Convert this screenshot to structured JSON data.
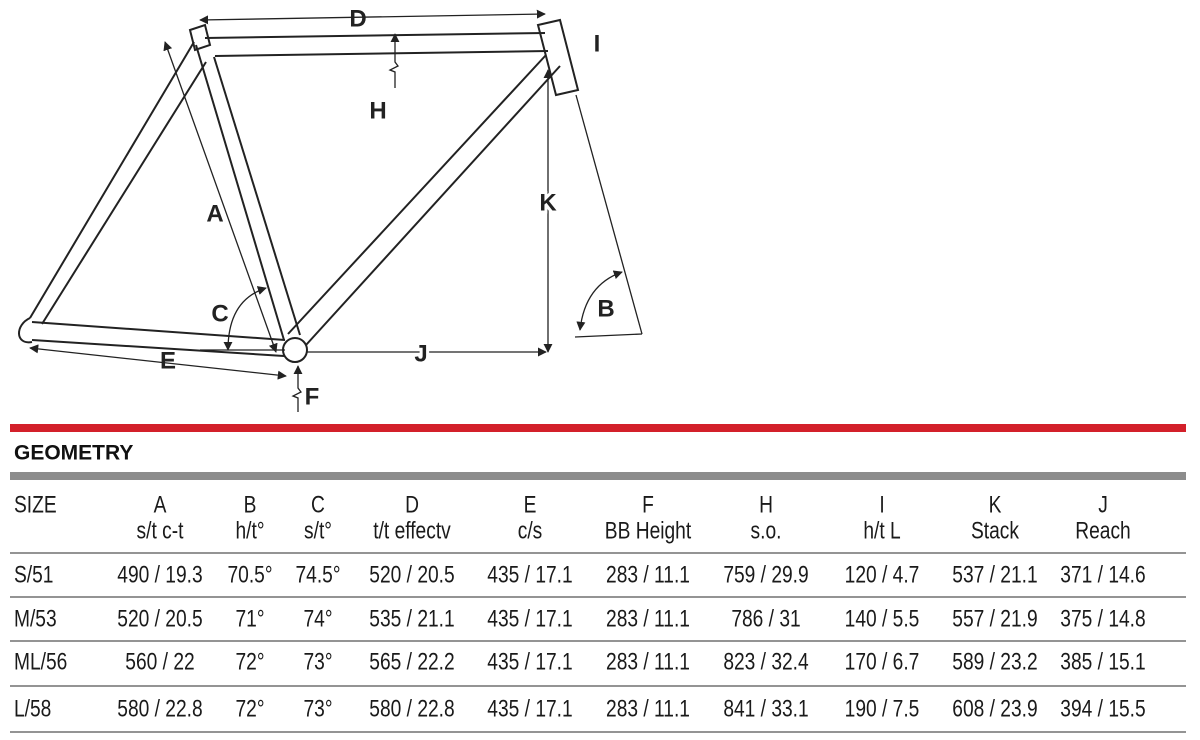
{
  "diagram": {
    "labels": {
      "D": "D",
      "I": "I",
      "H": "H",
      "K": "K",
      "A": "A",
      "C": "C",
      "B": "B",
      "E": "E",
      "J": "J",
      "F": "F"
    }
  },
  "section_title": "GEOMETRY",
  "table": {
    "size_header": "SIZE",
    "header": [
      {
        "letter": "A",
        "name": "s/t c-t"
      },
      {
        "letter": "B",
        "name": "h/t°"
      },
      {
        "letter": "C",
        "name": "s/t°"
      },
      {
        "letter": "D",
        "name": "t/t effectv"
      },
      {
        "letter": "E",
        "name": "c/s"
      },
      {
        "letter": "F",
        "name": "BB Height"
      },
      {
        "letter": "H",
        "name": "s.o."
      },
      {
        "letter": "I",
        "name": "h/t L"
      },
      {
        "letter": "K",
        "name": "Stack"
      },
      {
        "letter": "J",
        "name": "Reach"
      }
    ],
    "rows": [
      [
        "S/51",
        "490 / 19.3",
        "70.5°",
        "74.5°",
        "520 / 20.5",
        "435 / 17.1",
        "283 / 11.1",
        "759 / 29.9",
        "120 / 4.7",
        "537 / 21.1",
        "371 / 14.6"
      ],
      [
        "M/53",
        "520 / 20.5",
        "71°",
        "74°",
        "535 / 21.1",
        "435 / 17.1",
        "283 / 11.1",
        "786 / 31",
        "140 / 5.5",
        "557 / 21.9",
        "375 / 14.8"
      ],
      [
        "ML/56",
        "560 / 22",
        "72°",
        "73°",
        "565 / 22.2",
        "435 / 17.1",
        "283 / 11.1",
        "823 / 32.4",
        "170 / 6.7",
        "589 / 23.2",
        "385 / 15.1"
      ],
      [
        "L/58",
        "580 / 22.8",
        "72°",
        "73°",
        "580 / 22.8",
        "435 / 17.1",
        "283 / 11.1",
        "841 / 33.1",
        "190 / 7.5",
        "608 / 23.9",
        "394 / 15.5"
      ]
    ]
  }
}
